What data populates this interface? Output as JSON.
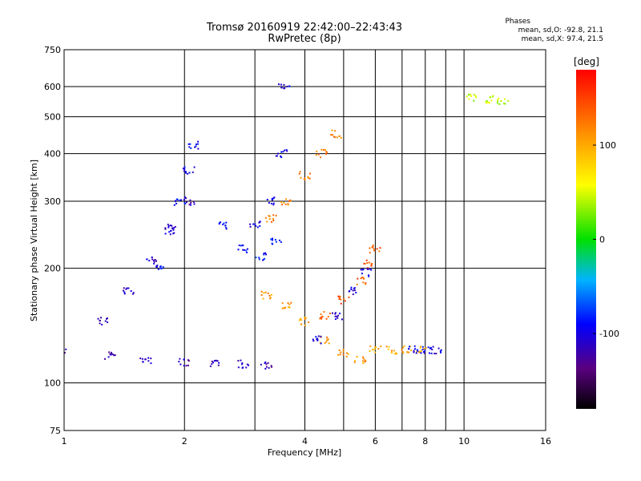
{
  "header": {
    "title_line1": "Tromsø 20160919 22:42:00–22:43:43",
    "title_line2": "RwPretec (8p)"
  },
  "stats": {
    "heading": "Phases",
    "line_o": "mean, sd,O: -92.8, 21.1",
    "line_x": "mean, sd,X:  97.4, 21.5"
  },
  "colorbar": {
    "unit": "[deg]",
    "ticks": [
      "100",
      "0",
      "-100"
    ],
    "tick_values": [
      100,
      0,
      -100
    ],
    "range": [
      -180,
      180
    ]
  },
  "chart_data": {
    "type": "scatter",
    "xlabel": "Frequency [MHz]",
    "ylabel": "Stationary phase Virtual Height [km]",
    "xscale": "log",
    "yscale": "log",
    "xlim": [
      1,
      16
    ],
    "ylim": [
      75,
      750
    ],
    "xticks": [
      1,
      2,
      4,
      6,
      8,
      10,
      16
    ],
    "xtick_labels": [
      "1",
      "2",
      "4",
      "6",
      "8",
      "10",
      "16"
    ],
    "xminor": [
      3,
      5,
      7,
      9
    ],
    "yticks": [
      75,
      100,
      200,
      300,
      400,
      500,
      600,
      750
    ],
    "ytick_labels": [
      "75",
      "100",
      "200",
      "300",
      "400",
      "500",
      "600",
      "750"
    ],
    "grid": true,
    "color_encoding": "phase [deg]",
    "traces": [
      {
        "x": [
          1.0,
          1.3,
          1.6,
          2.0,
          2.4,
          2.8,
          3.2
        ],
        "y": [
          120,
          118,
          115,
          113,
          112,
          112,
          111
        ],
        "phase": -115
      },
      {
        "x": [
          1.25,
          1.45,
          1.65,
          1.85,
          2.05
        ],
        "y": [
          145,
          175,
          210,
          255,
          300
        ],
        "phase": -110
      },
      {
        "x": [
          1.75,
          1.85,
          1.95,
          2.05,
          2.1
        ],
        "y": [
          200,
          250,
          300,
          360,
          420
        ],
        "phase": -95
      },
      {
        "x": [
          2.5,
          2.8,
          3.1,
          3.4
        ],
        "y": [
          260,
          225,
          215,
          235
        ],
        "phase": -85
      },
      {
        "x": [
          3.0,
          3.3,
          3.5,
          3.55
        ],
        "y": [
          260,
          300,
          400,
          600
        ],
        "phase": -100
      },
      {
        "x": [
          3.3,
          3.6,
          4.0,
          4.4,
          4.8
        ],
        "y": [
          270,
          300,
          350,
          400,
          450
        ],
        "phase": 120
      },
      {
        "x": [
          3.2,
          3.6,
          4.0,
          4.5,
          5.0,
          5.5
        ],
        "y": [
          170,
          160,
          145,
          130,
          120,
          115
        ],
        "phase": 110
      },
      {
        "x": [
          4.5,
          5.0,
          5.5,
          5.8,
          6.0
        ],
        "y": [
          150,
          165,
          185,
          205,
          225
        ],
        "phase": 140
      },
      {
        "x": [
          4.3,
          4.8,
          5.3,
          5.7
        ],
        "y": [
          130,
          150,
          175,
          195
        ],
        "phase": -105
      },
      {
        "x": [
          6.0,
          6.6,
          7.2,
          7.8
        ],
        "y": [
          122,
          122,
          122,
          122
        ],
        "phase": 100
      },
      {
        "x": [
          7.5,
          8.0,
          8.5
        ],
        "y": [
          122,
          122,
          122
        ],
        "phase": -100
      },
      {
        "x": [
          10.5,
          11.5,
          12.5
        ],
        "y": [
          560,
          555,
          545
        ],
        "phase": 40
      }
    ]
  }
}
